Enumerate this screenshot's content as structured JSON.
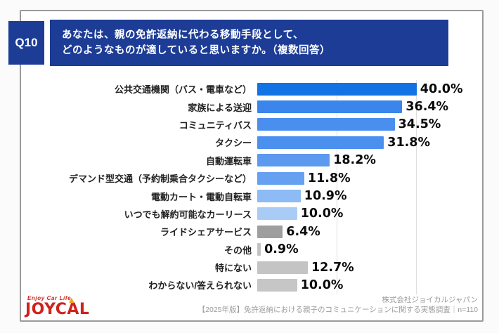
{
  "header": {
    "badge": "Q10",
    "title_line1": "あなたは、親の免許返納に代わる移動手段として、",
    "title_line2": "どのようなものが適していると思いますか。（複数回答）",
    "bg_color": "#1c3c96"
  },
  "chart_data": {
    "type": "bar",
    "orientation": "horizontal",
    "title": "あなたは、親の免許返納に代わる移動手段として、どのようなものが適していると思いますか。（複数回答）",
    "categories": [
      "公共交通機関（バス・電車など）",
      "家族による送迎",
      "コミュニティバス",
      "タクシー",
      "自動運転車",
      "デマンド型交通（予約制乗合タクシーなど）",
      "電動カート・電動自転車",
      "いつでも解約可能なカーリース",
      "ライドシェアサービス",
      "その他",
      "特にない",
      "わからない/答えられない"
    ],
    "values": [
      40.0,
      36.4,
      34.5,
      31.8,
      18.2,
      11.8,
      10.9,
      10.0,
      6.4,
      0.9,
      12.7,
      10.0
    ],
    "value_labels": [
      "40.0%",
      "36.4%",
      "34.5%",
      "31.8%",
      "18.2%",
      "11.8%",
      "10.9%",
      "10.0%",
      "6.4%",
      "0.9%",
      "12.7%",
      "10.0%"
    ],
    "bar_colors": [
      "#1372e4",
      "#3a86ec",
      "#4a8fee",
      "#4a90ee",
      "#5c9af0",
      "#66a0f1",
      "#8cbbf5",
      "#a9ccf6",
      "#9e9e9e",
      "#c2c2c2",
      "#c4c4c4",
      "#c6c6c6"
    ],
    "xlim": [
      0,
      60
    ],
    "gridlines_pct": [
      20,
      40
    ],
    "grid": true,
    "legend_position": "none",
    "xlabel": "",
    "ylabel": ""
  },
  "footer": {
    "company": "株式会社ジョイカルジャパン",
    "source": "【2025年版】免許返納における親子のコミュニケーションに関する実態調査｜n=110"
  },
  "logo": {
    "tagline": "Enjoy Car Life",
    "name": "JOYCAL",
    "color": "#cf231c",
    "flame_color": "#f5a11b",
    "flame_glyph": "▲"
  }
}
